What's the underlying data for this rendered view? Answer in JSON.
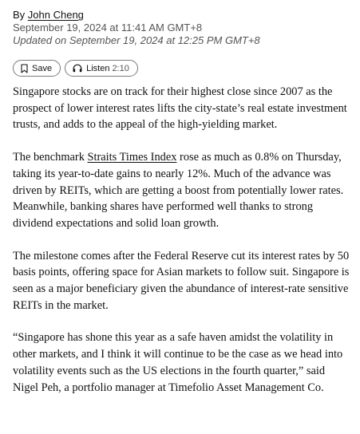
{
  "byline": {
    "prefix": "By",
    "author": "John Cheng"
  },
  "dates": {
    "published": "September 19, 2024 at 11:41 AM GMT+8",
    "updated": "Updated on September 19, 2024 at 12:25 PM GMT+8"
  },
  "actions": {
    "save_label": "Save",
    "listen_label": "Listen",
    "listen_duration": "2:10"
  },
  "article": {
    "p1": "Singapore stocks are on track for their highest close since 2007 as the prospect of lower interest rates lifts the city-state’s real estate investment trusts, and adds to the appeal of the high-yielding market.",
    "p2_before": "The benchmark ",
    "p2_link": "Straits Times Index",
    "p2_after": " rose as much as 0.8% on Thursday, taking its year-to-date gains to nearly 12%. Much of the advance was driven by REITs, which are getting a boost from potentially lower rates. Meanwhile, banking shares have performed well thanks to strong dividend expectations and solid loan growth.",
    "p3": "The milestone comes after the Federal Reserve cut its interest rates by 50 basis points, offering space for Asian markets to follow suit. Singapore is seen as a major beneficiary given the abundance of interest-rate sensitive REITs in the market.",
    "p4": "“Singapore has shone this year as a safe haven amidst the volatility in other markets, and I think it will continue to be the case as we head into volatility events such as the US elections in the fourth quarter,” said Nigel Peh, a portfolio manager at Timefolio Asset Management Co."
  }
}
